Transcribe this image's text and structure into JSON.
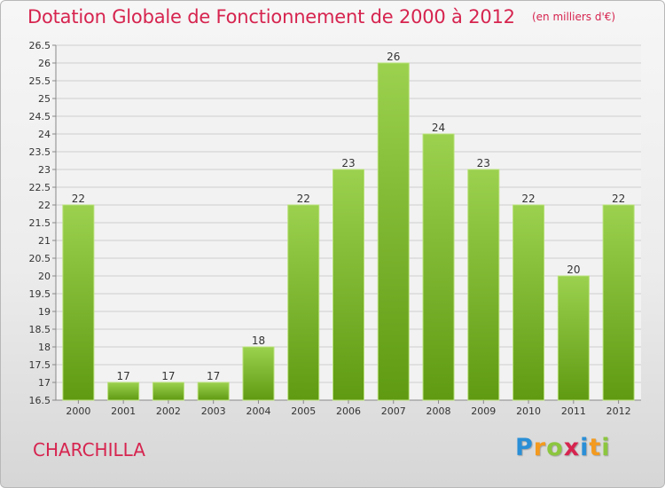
{
  "header": {
    "title": "Dotation Globale de Fonctionnement de 2000 à 2012",
    "unit": "(en milliers d'€)"
  },
  "footer": {
    "commune": "CHARCHILLA",
    "logo_text": "Proxiti",
    "logo_letters": [
      {
        "ch": "P",
        "color": "#2a8fd6"
      },
      {
        "ch": "r",
        "color": "#f39a1f"
      },
      {
        "ch": "o",
        "color": "#8cc63f"
      },
      {
        "ch": "x",
        "color": "#d6244f"
      },
      {
        "ch": "i",
        "color": "#2a8fd6"
      },
      {
        "ch": "t",
        "color": "#f39a1f"
      },
      {
        "ch": "i",
        "color": "#8cc63f"
      }
    ]
  },
  "colors": {
    "bar_top": "#9bd14e",
    "bar_bottom": "#5f9a12",
    "grid": "#cfcfcf",
    "axis_text": "#333333",
    "accent": "#d6244f"
  },
  "chart_data": {
    "type": "bar",
    "title": "Dotation Globale de Fonctionnement de 2000 à 2012",
    "xlabel": "",
    "ylabel": "",
    "categories": [
      "2000",
      "2001",
      "2002",
      "2003",
      "2004",
      "2005",
      "2006",
      "2007",
      "2008",
      "2009",
      "2010",
      "2011",
      "2012"
    ],
    "values": [
      22,
      17,
      17,
      17,
      18,
      22,
      23,
      26,
      24,
      23,
      22,
      20,
      22
    ],
    "ylim": [
      16.5,
      26.5
    ],
    "ytick_step": 0.5,
    "yticks": [
      "16.5",
      "17",
      "17.5",
      "18",
      "18.5",
      "19",
      "19.5",
      "20",
      "20.5",
      "21",
      "21.5",
      "22",
      "22.5",
      "23",
      "23.5",
      "24",
      "24.5",
      "25",
      "25.5",
      "26",
      "26.5"
    ],
    "grid": true
  }
}
